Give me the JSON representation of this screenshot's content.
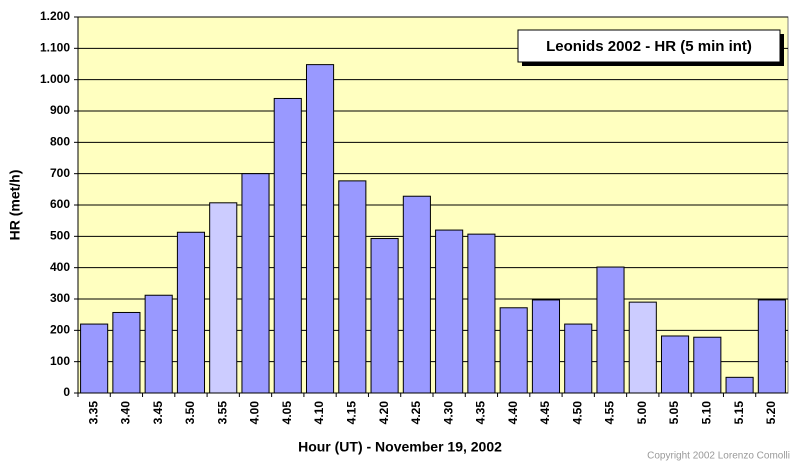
{
  "chart_data": {
    "type": "bar",
    "title": "Leonids 2002 - HR (5 min int)",
    "x_label": "Hour (UT) - November 19, 2002",
    "y_label": "HR (met/h)",
    "copyright": "Copyright 2002 Lorenzo Comolli",
    "categories": [
      "3.35",
      "3.40",
      "3.45",
      "3.50",
      "3.55",
      "4.00",
      "4.05",
      "4.10",
      "4.15",
      "4.20",
      "4.25",
      "4.30",
      "4.35",
      "4.40",
      "4.45",
      "4.50",
      "4.55",
      "5.00",
      "5.05",
      "5.10",
      "5.15",
      "5.20"
    ],
    "values": [
      220,
      257,
      312,
      513,
      607,
      700,
      940,
      1048,
      677,
      493,
      628,
      520,
      507,
      272,
      297,
      220,
      402,
      290,
      182,
      178,
      50,
      297
    ],
    "colors": [
      "#9999ff",
      "#9999ff",
      "#9999ff",
      "#9999ff",
      "#ccccff",
      "#9999ff",
      "#9999ff",
      "#9999ff",
      "#9999ff",
      "#9999ff",
      "#9999ff",
      "#9999ff",
      "#9999ff",
      "#9999ff",
      "#9999ff",
      "#9999ff",
      "#9999ff",
      "#ccccff",
      "#9999ff",
      "#9999ff",
      "#9999ff",
      "#9999ff"
    ],
    "ylim": [
      0,
      1200
    ],
    "yticks": [
      0,
      100,
      200,
      300,
      400,
      500,
      600,
      700,
      800,
      900,
      {
        "value": 1000,
        "label": "1.000"
      },
      {
        "value": 1100,
        "label": "1.100"
      },
      {
        "value": 1200,
        "label": "1.200"
      }
    ],
    "grid": true,
    "plot_background": "#ffffc0"
  }
}
